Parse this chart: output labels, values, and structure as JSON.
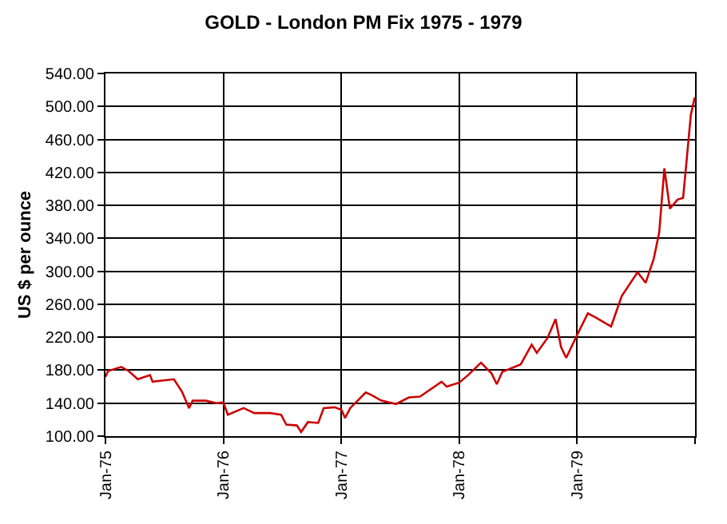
{
  "chart_data": {
    "type": "line",
    "title": "GOLD - London PM Fix 1975 - 1979",
    "ylabel": "US $ per ounce",
    "x": [
      "1975-01-01",
      "1975-01-09",
      "1975-02-19",
      "1975-03-14",
      "1975-04-11",
      "1975-05-19",
      "1975-05-27",
      "1975-08-01",
      "1975-08-26",
      "1975-09-17",
      "1975-09-28",
      "1975-11-08",
      "1975-12-11",
      "1976-01-01",
      "1976-01-15",
      "1976-03-04",
      "1976-04-06",
      "1976-05-25",
      "1976-06-28",
      "1976-07-14",
      "1976-08-16",
      "1976-08-29",
      "1976-09-19",
      "1976-10-21",
      "1976-11-07",
      "1976-12-10",
      "1977-01-01",
      "1977-01-12",
      "1977-01-28",
      "1977-03-17",
      "1977-04-03",
      "1977-05-05",
      "1977-06-19",
      "1977-07-29",
      "1977-09-01",
      "1977-11-07",
      "1977-11-23",
      "1978-01-01",
      "1978-01-28",
      "1978-03-09",
      "1978-04-11",
      "1978-04-27",
      "1978-05-14",
      "1978-07-10",
      "1978-08-13",
      "1978-08-29",
      "1978-10-01",
      "1978-10-26",
      "1978-11-12",
      "1978-11-28",
      "1979-01-01",
      "1979-02-03",
      "1979-02-27",
      "1979-04-16",
      "1979-05-19",
      "1979-07-07",
      "1979-08-01",
      "1979-08-26",
      "1979-09-12",
      "1979-09-28",
      "1979-10-15",
      "1979-11-08",
      "1979-11-25",
      "1979-12-06",
      "1979-12-19",
      "1979-12-31"
    ],
    "series": [
      {
        "color": "#cc0000",
        "values": [
          172,
          179,
          184,
          179,
          169,
          174,
          166,
          169,
          154,
          134,
          143,
          143,
          140,
          141,
          126,
          134,
          128,
          128,
          126,
          114,
          113,
          105,
          117,
          116,
          134,
          135,
          132,
          122,
          134,
          153,
          150,
          143,
          139,
          147,
          148,
          166,
          160,
          165,
          174,
          189,
          176,
          163,
          178,
          187,
          211,
          201,
          219,
          242,
          208,
          195,
          223,
          249,
          244,
          233,
          270,
          299,
          286,
          315,
          347,
          425,
          376,
          387,
          389,
          435,
          490,
          511
        ]
      }
    ],
    "xlim": [
      "1975-01-01",
      "1980-01-01"
    ],
    "xticks": [
      {
        "value": "1975-01-01",
        "label": "Jan-75"
      },
      {
        "value": "1976-01-01",
        "label": "Jan-76"
      },
      {
        "value": "1977-01-01",
        "label": "Jan-77"
      },
      {
        "value": "1978-01-01",
        "label": "Jan-78"
      },
      {
        "value": "1979-01-01",
        "label": "Jan-79"
      },
      {
        "value": "1980-01-01",
        "label": null
      }
    ],
    "ylim": [
      100,
      540
    ],
    "yticks": [
      {
        "value": 100,
        "label": "100.00"
      },
      {
        "value": 140,
        "label": "140.00"
      },
      {
        "value": 180,
        "label": "180.00"
      },
      {
        "value": 220,
        "label": "220.00"
      },
      {
        "value": 260,
        "label": "260.00"
      },
      {
        "value": 300,
        "label": "300.00"
      },
      {
        "value": 340,
        "label": "340.00"
      },
      {
        "value": 380,
        "label": "380.00"
      },
      {
        "value": 420,
        "label": "420.00"
      },
      {
        "value": 460,
        "label": "460.00"
      },
      {
        "value": 500,
        "label": "500.00"
      },
      {
        "value": 540,
        "label": "540.00"
      }
    ],
    "grid": true,
    "marker": "none",
    "line_style": "solid"
  }
}
